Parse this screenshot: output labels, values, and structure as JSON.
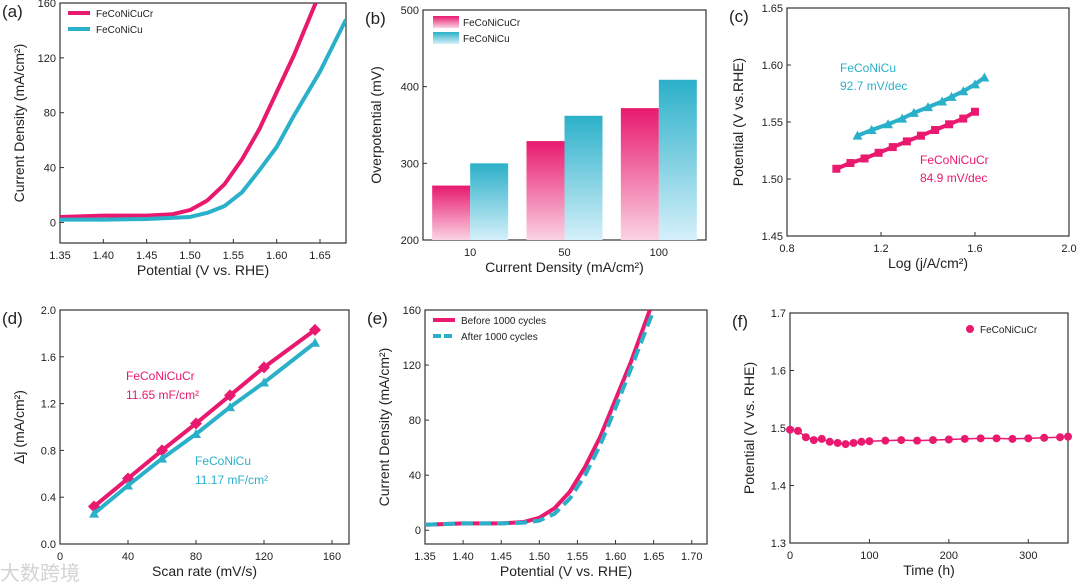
{
  "watermark": "大数跨境",
  "colors": {
    "pink": "#e8196e",
    "cyan": "#2bb0c9"
  },
  "chart_data": [
    {
      "id": "a",
      "type": "line",
      "panel_label": "(a)",
      "xlabel": "Potential (V vs. RHE)",
      "ylabel": "Current Density (mA/cm²)",
      "xlim": [
        1.35,
        1.68
      ],
      "ylim": [
        -15,
        160
      ],
      "xticks": [
        1.35,
        1.4,
        1.45,
        1.5,
        1.55,
        1.6,
        1.65
      ],
      "xtick_labels": [
        "1.35",
        "1.40",
        "1.45",
        "1.50",
        "1.55",
        "1.60",
        "1.65"
      ],
      "yticks": [
        0,
        40,
        80,
        120,
        160
      ],
      "ytick_labels": [
        "0",
        "40",
        "80",
        "120",
        "160"
      ],
      "legend": "top-left",
      "series": [
        {
          "name": "FeCoNiCuCr",
          "color": "#e8196e",
          "x": [
            1.35,
            1.4,
            1.45,
            1.48,
            1.5,
            1.52,
            1.54,
            1.56,
            1.58,
            1.6,
            1.62,
            1.645
          ],
          "y": [
            4,
            5,
            5,
            6,
            9,
            16,
            28,
            46,
            68,
            95,
            122,
            160
          ]
        },
        {
          "name": "FeCoNiCu",
          "color": "#2bb0c9",
          "x": [
            1.35,
            1.4,
            1.45,
            1.5,
            1.52,
            1.54,
            1.56,
            1.58,
            1.6,
            1.62,
            1.65,
            1.68
          ],
          "y": [
            2,
            2,
            2.5,
            4,
            7,
            12,
            22,
            38,
            55,
            78,
            110,
            148
          ]
        }
      ]
    },
    {
      "id": "b",
      "type": "bar",
      "panel_label": "(b)",
      "xlabel": "Current Density (mA/cm²)",
      "ylabel": "Overpotential (mV)",
      "categories": [
        "10",
        "50",
        "100"
      ],
      "ylim": [
        200,
        500
      ],
      "yticks": [
        200,
        300,
        400,
        500
      ],
      "ytick_labels": [
        "200",
        "300",
        "400",
        "500"
      ],
      "legend": "top-left",
      "series": [
        {
          "name": "FeCoNiCuCr",
          "color": "#e8196e",
          "values": [
            271,
            329,
            372
          ]
        },
        {
          "name": "FeCoNiCu",
          "color": "#2bb0c9",
          "values": [
            300,
            362,
            409
          ]
        }
      ]
    },
    {
      "id": "c",
      "type": "scatter",
      "panel_label": "(c)",
      "xlabel": "Log (j/A/cm²)",
      "ylabel": "Potential (V vs.RHE)",
      "xlim": [
        0.8,
        2.0
      ],
      "ylim": [
        1.45,
        1.65
      ],
      "xticks": [
        0.8,
        1.2,
        1.6,
        2.0
      ],
      "xtick_labels": [
        "0.8",
        "1.2",
        "1.6",
        "2.0"
      ],
      "yticks": [
        1.45,
        1.5,
        1.55,
        1.6,
        1.65
      ],
      "ytick_labels": [
        "1.45",
        "1.50",
        "1.55",
        "1.60",
        "1.65"
      ],
      "annotations": [
        {
          "text": "FeCoNiCu",
          "color": "#2bb0c9"
        },
        {
          "text": "92.7 mV/dec",
          "color": "#2bb0c9"
        },
        {
          "text": "FeCoNiCuCr",
          "color": "#e8196e"
        },
        {
          "text": "84.9 mV/dec",
          "color": "#e8196e"
        }
      ],
      "series": [
        {
          "name": "FeCoNiCu",
          "color": "#2bb0c9",
          "marker": "triangle",
          "x": [
            1.1,
            1.16,
            1.23,
            1.29,
            1.34,
            1.4,
            1.46,
            1.5,
            1.55,
            1.6,
            1.64
          ],
          "y": [
            1.538,
            1.543,
            1.548,
            1.553,
            1.558,
            1.563,
            1.568,
            1.572,
            1.577,
            1.583,
            1.589
          ]
        },
        {
          "name": "FeCoNiCuCr",
          "color": "#e8196e",
          "marker": "square",
          "x": [
            1.01,
            1.07,
            1.13,
            1.19,
            1.25,
            1.31,
            1.37,
            1.43,
            1.49,
            1.55,
            1.6
          ],
          "y": [
            1.509,
            1.514,
            1.518,
            1.523,
            1.528,
            1.533,
            1.538,
            1.543,
            1.548,
            1.553,
            1.559
          ]
        }
      ]
    },
    {
      "id": "d",
      "type": "line",
      "panel_label": "(d)",
      "xlabel": "Scan rate (mV/s)",
      "ylabel": "Δj (mA/cm²)",
      "xlim": [
        0,
        170
      ],
      "ylim": [
        0,
        2.0
      ],
      "xticks": [
        0,
        40,
        80,
        120,
        160
      ],
      "xtick_labels": [
        "0",
        "40",
        "80",
        "120",
        "160"
      ],
      "yticks": [
        0,
        0.4,
        0.8,
        1.2,
        1.6,
        2.0
      ],
      "ytick_labels": [
        "0.0",
        "0.4",
        "0.8",
        "1.2",
        "1.6",
        "2.0"
      ],
      "annotations": [
        {
          "text": "FeCoNiCuCr",
          "color": "#e8196e"
        },
        {
          "text": "11.65 mF/cm²",
          "color": "#e8196e"
        },
        {
          "text": "FeCoNiCu",
          "color": "#2bb0c9"
        },
        {
          "text": "11.17 mF/cm²",
          "color": "#2bb0c9"
        }
      ],
      "series": [
        {
          "name": "FeCoNiCuCr",
          "color": "#e8196e",
          "marker": "diamond",
          "x": [
            20,
            40,
            60,
            80,
            100,
            120,
            150
          ],
          "y": [
            0.32,
            0.56,
            0.8,
            1.03,
            1.27,
            1.51,
            1.83
          ]
        },
        {
          "name": "FeCoNiCu",
          "color": "#2bb0c9",
          "marker": "triangle",
          "x": [
            20,
            40,
            60,
            80,
            100,
            120,
            150
          ],
          "y": [
            0.26,
            0.5,
            0.73,
            0.94,
            1.17,
            1.38,
            1.72
          ]
        }
      ]
    },
    {
      "id": "e",
      "type": "line",
      "panel_label": "(e)",
      "xlabel": "Potential (V vs. RHE)",
      "ylabel": "Current Density (mA/cm²)",
      "xlim": [
        1.35,
        1.72
      ],
      "ylim": [
        -10,
        160
      ],
      "xticks": [
        1.35,
        1.4,
        1.45,
        1.5,
        1.55,
        1.6,
        1.65,
        1.7
      ],
      "xtick_labels": [
        "1.35",
        "1.40",
        "1.45",
        "1.50",
        "1.55",
        "1.60",
        "1.65",
        "1.70"
      ],
      "yticks": [
        0,
        40,
        80,
        120,
        160
      ],
      "ytick_labels": [
        "0",
        "40",
        "80",
        "120",
        "160"
      ],
      "legend": "top-left",
      "series": [
        {
          "name": "Before 1000 cycles",
          "color": "#e8196e",
          "x": [
            1.35,
            1.4,
            1.45,
            1.48,
            1.5,
            1.52,
            1.54,
            1.56,
            1.58,
            1.6,
            1.62,
            1.645
          ],
          "y": [
            4,
            5,
            5,
            6,
            9,
            16,
            28,
            46,
            68,
            95,
            122,
            160
          ]
        },
        {
          "name": "After 1000 cycles",
          "color": "#2bb0c9",
          "dash": true,
          "x": [
            1.35,
            1.4,
            1.45,
            1.48,
            1.5,
            1.52,
            1.54,
            1.56,
            1.58,
            1.6,
            1.62,
            1.65
          ],
          "y": [
            4,
            5,
            5,
            5.5,
            7,
            12,
            23,
            40,
            62,
            89,
            117,
            160
          ]
        }
      ]
    },
    {
      "id": "f",
      "type": "line",
      "panel_label": "(f)",
      "xlabel": "Time (h)",
      "ylabel": "Potential (V vs. RHE)",
      "xlim": [
        0,
        350
      ],
      "ylim": [
        1.3,
        1.7
      ],
      "xticks": [
        0,
        100,
        200,
        300
      ],
      "xtick_labels": [
        "0",
        "100",
        "200",
        "300"
      ],
      "yticks": [
        1.3,
        1.4,
        1.5,
        1.6,
        1.7
      ],
      "ytick_labels": [
        "1.3",
        "1.4",
        "1.5",
        "1.6",
        "1.7"
      ],
      "legend": "top-right",
      "series": [
        {
          "name": "FeCoNiCuCr",
          "color": "#e8196e",
          "marker": "dot",
          "x": [
            0,
            10,
            20,
            30,
            40,
            50,
            60,
            70,
            80,
            90,
            100,
            120,
            140,
            160,
            180,
            200,
            220,
            240,
            260,
            280,
            300,
            320,
            340,
            350
          ],
          "y": [
            1.497,
            1.495,
            1.484,
            1.479,
            1.481,
            1.476,
            1.474,
            1.472,
            1.474,
            1.476,
            1.477,
            1.478,
            1.479,
            1.478,
            1.479,
            1.48,
            1.481,
            1.482,
            1.482,
            1.481,
            1.482,
            1.483,
            1.484,
            1.485
          ]
        }
      ]
    }
  ]
}
